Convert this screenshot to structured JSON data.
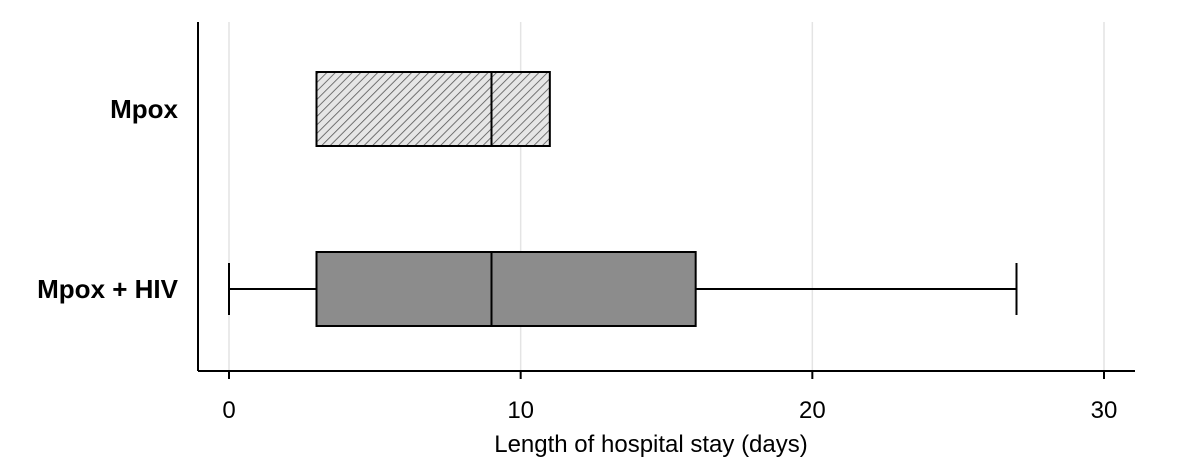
{
  "chart_data": {
    "type": "box",
    "orientation": "horizontal",
    "xlabel": "Length of hospital stay (days)",
    "xlim": [
      -1,
      31
    ],
    "xticks": [
      0,
      10,
      20,
      30
    ],
    "grid": true,
    "categories": [
      "Mpox",
      "Mpox + HIV"
    ],
    "boxes": [
      {
        "label": "Mpox",
        "q1": 3,
        "median": 9,
        "q3": 11,
        "whisker_low": 3,
        "whisker_high": 11,
        "fill": "hatched-light-gray"
      },
      {
        "label": "Mpox + HIV",
        "q1": 3,
        "median": 9,
        "q3": 16,
        "whisker_low": 0,
        "whisker_high": 27,
        "fill": "#8c8c8c"
      }
    ]
  }
}
